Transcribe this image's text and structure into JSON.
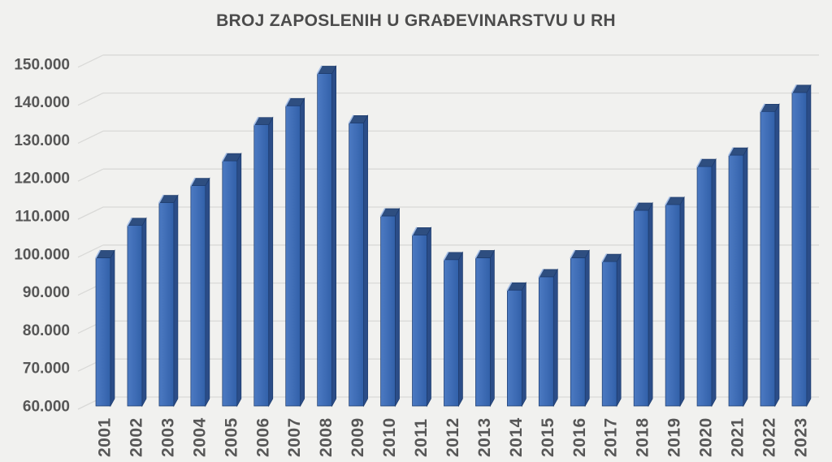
{
  "title": "BROJ ZAPOSLENIH U GRAĐEVINARSTVU U RH",
  "colors": {
    "background": "#F1F1EF",
    "text": "#575757",
    "title_text": "#4C4C4C",
    "gridline": "#D9D9D7",
    "bar_front_light": "#4C7AC2",
    "bar_front": "#3E6CB5",
    "bar_front_dark": "#3160A8",
    "bar_side": "#2B4D88",
    "bar_top": "#2E4E80",
    "bar_top_highlight": "#A6BFE6",
    "bar_outline": "#1D3B6C"
  },
  "chart_data": {
    "type": "bar",
    "style": "3d-column",
    "title": "BROJ ZAPOSLENIH U GRAĐEVINARSTVU U RH",
    "xlabel": "",
    "ylabel": "",
    "grid": true,
    "legend": false,
    "ylim": [
      60000,
      150000
    ],
    "ytick_step": 10000,
    "ytick_labels": [
      "60.000",
      "70.000",
      "80.000",
      "90.000",
      "100.000",
      "110.000",
      "120.000",
      "130.000",
      "140.000",
      "150.000"
    ],
    "categories": [
      "2001",
      "2002",
      "2003",
      "2004",
      "2005",
      "2006",
      "2007",
      "2008",
      "2009",
      "2010",
      "2011",
      "2012",
      "2013",
      "2014",
      "2015",
      "2016",
      "2017",
      "2018",
      "2019",
      "2020",
      "2021",
      "2022",
      "2023"
    ],
    "values": [
      99000,
      107500,
      113500,
      118000,
      124500,
      134000,
      139000,
      147500,
      134500,
      110000,
      105000,
      98500,
      99000,
      90500,
      94000,
      99000,
      98000,
      111500,
      113000,
      123000,
      126000,
      137500,
      142500
    ]
  }
}
